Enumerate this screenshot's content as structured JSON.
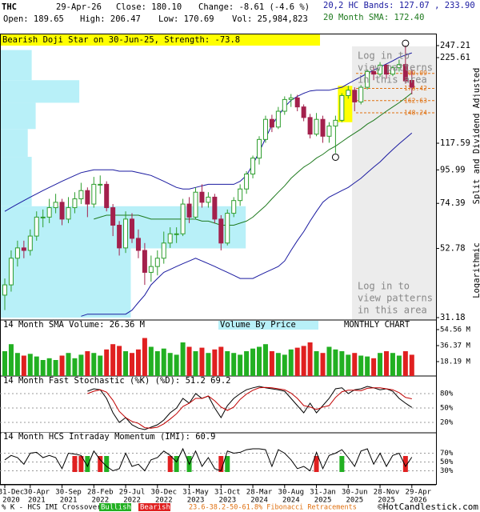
{
  "chart_data": {
    "type": "candlestick",
    "symbol": "THC",
    "date": "29-Apr-26",
    "header": {
      "close": "Close: 180.10",
      "change": "Change: -8.61 (-4.6 %)",
      "open": "Open: 189.65",
      "high": "High: 206.47",
      "low": "Low: 170.69",
      "volume": "Vol: 25,984,823",
      "bands": "20,2 HC Bands: 127.07 , 233.90",
      "sma": "20 Month SMA: 172.40"
    },
    "pattern_banner": "Bearish Doji Star on 30-Jun-25, Strength: -73.8",
    "patterns_notice": [
      "Log in to",
      "view patterns",
      "in this area"
    ],
    "axis_notes": [
      "Split and Dividend Adjusted",
      "Logarithmic"
    ],
    "chart_label": "MONTHLY CHART",
    "log_scale": true,
    "up_color": "#2e9e2e",
    "down_color": "#a3204c",
    "ylim": [
      31.18,
      247.21
    ],
    "yticks": [
      247.21,
      225.61,
      117.59,
      95.99,
      74.39,
      52.78,
      31.18
    ],
    "categories": [
      {
        "label": "31-Dec",
        "sub": "2020"
      },
      null,
      null,
      null,
      {
        "label": "30-Apr",
        "sub": "2021"
      },
      null,
      null,
      null,
      null,
      {
        "label": "30-Sep",
        "sub": "2021"
      },
      null,
      null,
      null,
      null,
      {
        "label": "28-Feb",
        "sub": "2022"
      },
      null,
      null,
      null,
      null,
      {
        "label": "29-Jul",
        "sub": "2022"
      },
      null,
      null,
      null,
      null,
      {
        "label": "30-Dec",
        "sub": "2022"
      },
      null,
      null,
      null,
      null,
      {
        "label": "31-May",
        "sub": "2023"
      },
      null,
      null,
      null,
      null,
      {
        "label": "31-Oct",
        "sub": "2023"
      },
      null,
      null,
      null,
      null,
      {
        "label": "28-Mar",
        "sub": "2024"
      },
      null,
      null,
      null,
      null,
      {
        "label": "30-Aug",
        "sub": "2024"
      },
      null,
      null,
      null,
      null,
      {
        "label": "31-Jan",
        "sub": "2025"
      },
      null,
      null,
      null,
      null,
      {
        "label": "30-Jun",
        "sub": "2025"
      },
      null,
      null,
      null,
      null,
      {
        "label": "28-Nov",
        "sub": "2025"
      },
      null,
      null,
      null,
      null,
      {
        "label": "29-Apr",
        "sub": "2026"
      }
    ],
    "candles": [
      [
        37,
        42,
        33,
        40
      ],
      [
        40,
        52,
        38,
        49
      ],
      [
        49,
        56,
        46,
        53
      ],
      [
        53,
        56,
        49,
        52
      ],
      [
        52,
        61,
        50,
        58
      ],
      [
        58,
        70,
        56,
        67
      ],
      [
        67,
        71,
        62,
        67
      ],
      [
        67,
        77,
        64,
        72
      ],
      [
        72,
        80,
        69,
        75
      ],
      [
        75,
        77,
        63,
        66
      ],
      [
        66,
        78,
        64,
        72
      ],
      [
        72,
        81,
        69,
        77
      ],
      [
        77,
        87,
        74,
        82
      ],
      [
        82,
        84,
        67,
        74
      ],
      [
        74,
        91,
        72,
        86
      ],
      [
        86,
        92,
        80,
        86
      ],
      [
        86,
        88,
        70,
        72
      ],
      [
        72,
        74,
        58,
        63
      ],
      [
        63,
        65,
        50,
        53
      ],
      [
        53,
        70,
        51,
        66
      ],
      [
        66,
        69,
        55,
        57
      ],
      [
        57,
        61,
        49,
        52
      ],
      [
        52,
        55,
        40,
        44
      ],
      [
        44,
        50,
        41,
        46
      ],
      [
        46,
        52,
        43,
        49
      ],
      [
        49,
        60,
        47,
        55
      ],
      [
        55,
        62,
        53,
        59
      ],
      [
        59,
        62,
        55,
        59
      ],
      [
        59,
        77,
        58,
        74
      ],
      [
        74,
        78,
        64,
        67
      ],
      [
        67,
        84,
        66,
        81
      ],
      [
        81,
        86,
        72,
        75
      ],
      [
        75,
        81,
        72,
        78
      ],
      [
        78,
        80,
        64,
        66
      ],
      [
        66,
        68,
        52,
        55
      ],
      [
        55,
        71,
        54,
        69
      ],
      [
        69,
        78,
        67,
        76
      ],
      [
        76,
        86,
        73,
        83
      ],
      [
        83,
        95,
        80,
        93
      ],
      [
        93,
        107,
        90,
        105
      ],
      [
        105,
        124,
        100,
        121
      ],
      [
        121,
        145,
        118,
        141
      ],
      [
        141,
        146,
        128,
        133
      ],
      [
        133,
        155,
        131,
        150
      ],
      [
        150,
        168,
        146,
        164
      ],
      [
        164,
        171,
        155,
        166
      ],
      [
        166,
        170,
        150,
        155
      ],
      [
        155,
        158,
        139,
        143
      ],
      [
        143,
        147,
        122,
        126
      ],
      [
        126,
        148,
        124,
        141
      ],
      [
        141,
        145,
        118,
        124
      ],
      [
        124,
        138,
        118,
        134
      ],
      [
        134,
        145,
        109,
        140
      ],
      [
        140,
        172,
        138,
        169
      ],
      [
        169,
        182,
        165,
        176
      ],
      [
        176,
        180,
        150,
        161
      ],
      [
        161,
        183,
        158,
        180
      ],
      [
        180,
        206,
        177,
        203
      ],
      [
        203,
        212,
        190,
        199
      ],
      [
        199,
        218,
        195,
        213
      ],
      [
        213,
        215,
        192,
        199
      ],
      [
        199,
        212,
        196,
        209
      ],
      [
        209,
        222,
        203,
        214
      ],
      [
        214,
        247,
        185,
        189
      ],
      [
        189.65,
        206.47,
        170.69,
        180.1
      ]
    ],
    "overlays": [
      {
        "name": "upper",
        "color": "#1a1aa0",
        "values": [
          70,
          72,
          74,
          76,
          78,
          80,
          82,
          84,
          86,
          88,
          90,
          92,
          94,
          95,
          96,
          96,
          96,
          96,
          95,
          95,
          95,
          94,
          93,
          92,
          90,
          88,
          86,
          84,
          83,
          83,
          84,
          85,
          86,
          86,
          86,
          86,
          86,
          88,
          92,
          100,
          110,
          122,
          135,
          145,
          155,
          163,
          168,
          172,
          175,
          176,
          176,
          176,
          178,
          180,
          185,
          190,
          195,
          200,
          205,
          210,
          215,
          220,
          226,
          230,
          233.9
        ]
      },
      {
        "name": "lower",
        "color": "#1a1aa0",
        "values": [
          null,
          null,
          null,
          null,
          null,
          null,
          null,
          null,
          null,
          null,
          null,
          null,
          31.5,
          32,
          32,
          32,
          32,
          32,
          32,
          32,
          33,
          35,
          37,
          40,
          42,
          44,
          45,
          46,
          47,
          48,
          49,
          48,
          47,
          46,
          45,
          44,
          43,
          42,
          42,
          42,
          43,
          44,
          45,
          46,
          48,
          52,
          56,
          60,
          65,
          70,
          75,
          78,
          80,
          82,
          84,
          87,
          90,
          94,
          98,
          102,
          107,
          112,
          117,
          122,
          127.07
        ]
      },
      {
        "name": "sma",
        "color": "#1f7a1f",
        "values": [
          null,
          null,
          null,
          null,
          null,
          null,
          null,
          null,
          null,
          null,
          null,
          null,
          null,
          null,
          66,
          67,
          68,
          68,
          68,
          68,
          68,
          68,
          67,
          66,
          66,
          66,
          66,
          66,
          66,
          66,
          66,
          65,
          65,
          64,
          63,
          63,
          63,
          64,
          65,
          67,
          70,
          73,
          77,
          81,
          85,
          90,
          94,
          98,
          101,
          105,
          108,
          112,
          115,
          119,
          123,
          127,
          131,
          136,
          140,
          145,
          150,
          155,
          160,
          166,
          172.4
        ]
      }
    ],
    "volume_by_price": {
      "bins": [
        31.18,
        52.8,
        72.8,
        106,
        131,
        160,
        190,
        239
      ],
      "values": [
        330,
        620,
        80,
        70,
        90,
        200,
        80
      ],
      "xlim": [
        0,
        1100
      ],
      "color": "#b8f0f8",
      "title": "Volume By Price"
    },
    "fibonacci": {
      "levels": [
        200.09,
        178.42,
        162.63,
        148.24
      ],
      "color": "#e07010",
      "legend": "23.6-38.2-50-61.8% Fibonacci Retracements"
    },
    "volume": {
      "title": "14 Month SMA Volume: 26.36 M",
      "ylim": [
        0,
        54.56
      ],
      "yticks": [
        {
          "value": 54.56,
          "label": "54.56 M"
        },
        {
          "value": 36.37,
          "label": "36.37 M"
        },
        {
          "value": 18.19,
          "label": "18.19 M"
        }
      ],
      "values": [
        30,
        38,
        28,
        25,
        27,
        24,
        20,
        22,
        20,
        25,
        28,
        22,
        26,
        30,
        28,
        25,
        32,
        38,
        36,
        30,
        28,
        32,
        45,
        35,
        30,
        33,
        28,
        26,
        40,
        35,
        30,
        34,
        28,
        32,
        35,
        30,
        28,
        26,
        30,
        33,
        35,
        38,
        30,
        28,
        26,
        32,
        34,
        36,
        40,
        30,
        28,
        35,
        32,
        30,
        26,
        28,
        25,
        24,
        22,
        28,
        30,
        28,
        25,
        30,
        25.98
      ]
    },
    "stochastic": {
      "title": "14 Month Fast Stochastic (%K) (%D): 51.2  69.2",
      "ylim": [
        0,
        100
      ],
      "yticks": [
        {
          "value": 80,
          "label": "80%"
        },
        {
          "value": 50,
          "label": "50%"
        },
        {
          "value": 20,
          "label": "20%"
        }
      ],
      "series": [
        {
          "name": "%K",
          "color": "#000000",
          "values": [
            null,
            null,
            null,
            null,
            null,
            null,
            null,
            null,
            null,
            null,
            null,
            null,
            null,
            85,
            90,
            88,
            70,
            40,
            20,
            30,
            15,
            8,
            5,
            10,
            15,
            25,
            40,
            50,
            70,
            60,
            80,
            70,
            75,
            50,
            30,
            55,
            70,
            80,
            88,
            92,
            95,
            92,
            90,
            88,
            85,
            70,
            55,
            40,
            60,
            40,
            55,
            70,
            90,
            92,
            80,
            88,
            90,
            95,
            92,
            88,
            90,
            85,
            70,
            60,
            51.2
          ]
        },
        {
          "name": "%D",
          "color": "#c00000",
          "values": [
            null,
            null,
            null,
            null,
            null,
            null,
            null,
            null,
            null,
            null,
            null,
            null,
            null,
            80,
            85,
            88,
            83,
            66,
            43,
            30,
            22,
            18,
            9,
            8,
            10,
            17,
            27,
            38,
            53,
            60,
            70,
            70,
            75,
            65,
            52,
            45,
            52,
            68,
            79,
            87,
            92,
            93,
            92,
            90,
            88,
            81,
            70,
            55,
            52,
            47,
            52,
            55,
            72,
            84,
            87,
            87,
            86,
            91,
            92,
            92,
            90,
            88,
            82,
            72,
            69.2
          ]
        }
      ]
    },
    "imi": {
      "title": "14 Month HCS Intraday Momentum (IMI): 60.9",
      "ylim": [
        0,
        100
      ],
      "yticks": [
        {
          "value": 70,
          "label": "70%"
        },
        {
          "value": 50,
          "label": "50%"
        },
        {
          "value": 30,
          "label": "30%"
        }
      ],
      "color": "#000000",
      "values": [
        55,
        65,
        60,
        45,
        70,
        72,
        60,
        65,
        60,
        35,
        70,
        68,
        65,
        40,
        75,
        55,
        40,
        30,
        35,
        70,
        40,
        45,
        30,
        55,
        60,
        75,
        65,
        50,
        80,
        45,
        75,
        40,
        60,
        35,
        30,
        75,
        70,
        72,
        78,
        80,
        80,
        78,
        40,
        78,
        70,
        55,
        35,
        40,
        30,
        72,
        35,
        65,
        70,
        78,
        60,
        40,
        75,
        80,
        45,
        70,
        40,
        65,
        70,
        40,
        60.9
      ],
      "bullish": [
        13,
        16,
        27,
        29,
        35,
        53
      ],
      "bearish": [
        11,
        12,
        15,
        26,
        34,
        49,
        63
      ]
    },
    "crossover_legend": {
      "text": "% K - HCS IMI Crossover,",
      "bullish": "Bullish",
      "bearish": "Bearish"
    },
    "credit": "©HotCandlestick.com"
  }
}
